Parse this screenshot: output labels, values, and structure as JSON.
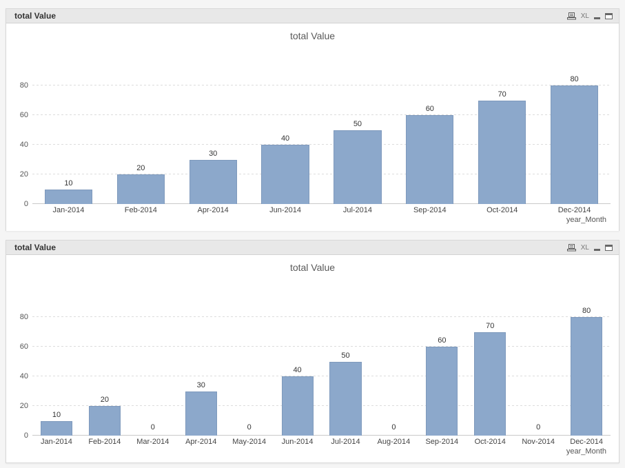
{
  "windows": [
    {
      "caption": "total Value",
      "excel_label": "XL",
      "icons": [
        "print-icon",
        "excel-export-icon",
        "minimize-icon",
        "maximize-icon"
      ]
    },
    {
      "caption": "total Value",
      "excel_label": "XL",
      "icons": [
        "print-icon",
        "excel-export-icon",
        "minimize-icon",
        "maximize-icon"
      ]
    }
  ],
  "chart_data": [
    {
      "type": "bar",
      "title": "total Value",
      "categories": [
        "Jan-2014",
        "Feb-2014",
        "Apr-2014",
        "Jun-2014",
        "Jul-2014",
        "Sep-2014",
        "Oct-2014",
        "Dec-2014"
      ],
      "values": [
        10,
        20,
        30,
        40,
        50,
        60,
        70,
        80
      ],
      "xlabel": "year_Month",
      "ylabel": "",
      "yticks": [
        0,
        20,
        40,
        60,
        80
      ],
      "ylim": [
        0,
        88
      ],
      "grid": "dashed-horizontal",
      "legend": "none",
      "bar_color": "#8ca8cb",
      "bar_border": "#7e99bc",
      "show_value_labels": true
    },
    {
      "type": "bar",
      "title": "total Value",
      "categories": [
        "Jan-2014",
        "Feb-2014",
        "Mar-2014",
        "Apr-2014",
        "May-2014",
        "Jun-2014",
        "Jul-2014",
        "Aug-2014",
        "Sep-2014",
        "Oct-2014",
        "Nov-2014",
        "Dec-2014"
      ],
      "values": [
        10,
        20,
        0,
        30,
        0,
        40,
        50,
        0,
        60,
        70,
        0,
        80
      ],
      "xlabel": "year_Month",
      "ylabel": "",
      "yticks": [
        0,
        20,
        40,
        60,
        80
      ],
      "ylim": [
        0,
        88
      ],
      "grid": "dashed-horizontal",
      "legend": "none",
      "bar_color": "#8ca8cb",
      "bar_border": "#7e99bc",
      "show_value_labels": true
    }
  ]
}
